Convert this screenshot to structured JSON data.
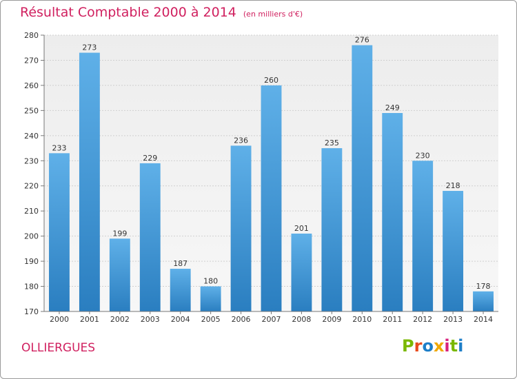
{
  "header": {
    "title": "Résultat Comptable 2000 à 2014",
    "unit": "(en milliers d'€)"
  },
  "footer": {
    "place": "OLLIERGUES",
    "brand": "Proxiti"
  },
  "colors": {
    "title": "#d0205f",
    "bar_light": "#5fb0e8",
    "bar_dark": "#2a7ec0",
    "brand_letters": [
      "#7ab800",
      "#e84a1c",
      "#1d7ec8",
      "#f0a800",
      "#d8207c",
      "#7ab800",
      "#1d7ec8"
    ]
  },
  "chart_data": {
    "type": "bar",
    "title": "Résultat Comptable 2000 à 2014",
    "xlabel": "",
    "ylabel": "",
    "ylim": [
      170,
      280
    ],
    "yticks": [
      170,
      180,
      190,
      200,
      210,
      220,
      230,
      240,
      250,
      260,
      270,
      280
    ],
    "grid": true,
    "categories": [
      "2000",
      "2001",
      "2002",
      "2003",
      "2004",
      "2005",
      "2006",
      "2007",
      "2008",
      "2009",
      "2010",
      "2011",
      "2012",
      "2013",
      "2014"
    ],
    "values": [
      233,
      273,
      199,
      229,
      187,
      180,
      236,
      260,
      201,
      235,
      276,
      249,
      230,
      218,
      178
    ]
  }
}
